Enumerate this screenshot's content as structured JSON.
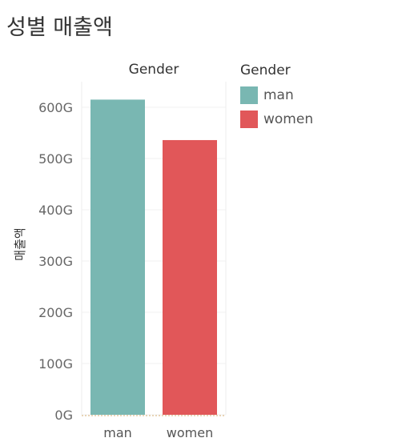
{
  "page_title": "성별 매출액",
  "chart_data": {
    "type": "bar",
    "title": "",
    "column_header": "Gender",
    "xlabel": "",
    "ylabel": "매출액",
    "categories": [
      "man",
      "women"
    ],
    "values": [
      615,
      536
    ],
    "value_unit": "G",
    "ylim": [
      0,
      650
    ],
    "yticks": [
      0,
      100,
      200,
      300,
      400,
      500,
      600
    ],
    "ytick_labels": [
      "0G",
      "100G",
      "200G",
      "300G",
      "400G",
      "500G",
      "600G"
    ],
    "colors": [
      "#79b7b2",
      "#e15759"
    ],
    "grid": true,
    "legend": {
      "title": "Gender",
      "position": "right",
      "items": [
        "man",
        "women"
      ]
    }
  }
}
